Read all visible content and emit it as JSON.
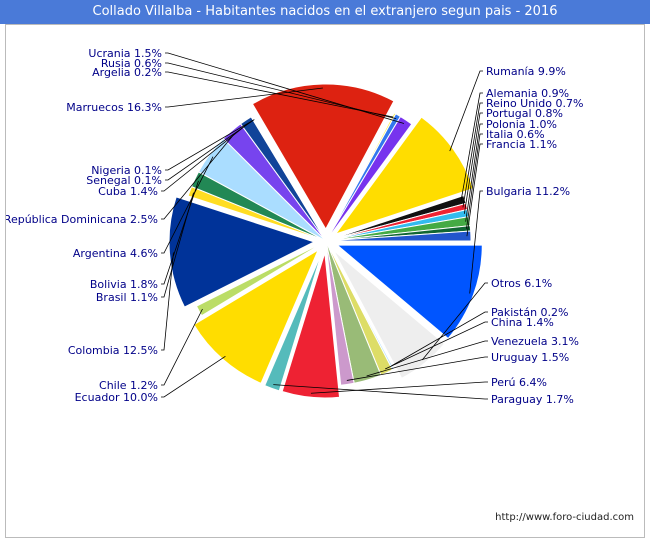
{
  "chart_data": {
    "type": "pie",
    "title": "Collado Villalba - Habitantes nacidos en el extranjero segun pais - 2016",
    "slices": [
      {
        "label": "Bulgaria 11.2%",
        "name": "Bulgaria",
        "value": 11.2,
        "color": "#0055ff",
        "exploded": true
      },
      {
        "label": "Otros 6.1%",
        "name": "Otros",
        "value": 6.1,
        "color": "#eeeeee",
        "exploded": true
      },
      {
        "label": "Pakistán 0.2%",
        "name": "Pakistán",
        "value": 0.2,
        "color": "#aaddff",
        "exploded": false
      },
      {
        "label": "China 1.4%",
        "name": "China",
        "value": 1.4,
        "color": "#dddd66",
        "exploded": false
      },
      {
        "label": "Venezuela 3.1%",
        "name": "Venezuela",
        "value": 3.1,
        "color": "#99bb77",
        "exploded": false
      },
      {
        "label": "Uruguay 1.5%",
        "name": "Uruguay",
        "value": 1.5,
        "color": "#cc99cc",
        "exploded": false
      },
      {
        "label": "Perú 6.4%",
        "name": "Perú",
        "value": 6.4,
        "color": "#ee2233",
        "exploded": true
      },
      {
        "label": "Paraguay 1.7%",
        "name": "Paraguay",
        "value": 1.7,
        "color": "#55bbbb",
        "exploded": true
      },
      {
        "label": "Ecuador 10.0%",
        "name": "Ecuador",
        "value": 10.0,
        "color": "#ffdd00",
        "exploded": true
      },
      {
        "label": "Chile 1.2%",
        "name": "Chile",
        "value": 1.2,
        "color": "#bbdd66",
        "exploded": false
      },
      {
        "label": "Colombia 12.5%",
        "name": "Colombia",
        "value": 12.5,
        "color": "#003399",
        "exploded": true
      },
      {
        "label": "Brasil 1.1%",
        "name": "Brasil",
        "value": 1.1,
        "color": "#ffdd22",
        "exploded": false
      },
      {
        "label": "Bolivia 1.8%",
        "name": "Bolivia",
        "value": 1.8,
        "color": "#228855",
        "exploded": false
      },
      {
        "label": "Argentina 4.6%",
        "name": "Argentina",
        "value": 4.6,
        "color": "#aaddff",
        "exploded": false
      },
      {
        "label": "República Dominicana 2.5%",
        "name": "República Dominicana",
        "value": 2.5,
        "color": "#7744ee",
        "exploded": false
      },
      {
        "label": "Cuba 1.4%",
        "name": "Cuba",
        "value": 1.4,
        "color": "#114499",
        "exploded": false
      },
      {
        "label": "Senegal 0.1%",
        "name": "Senegal",
        "value": 0.1,
        "color": "#44aa77",
        "exploded": false
      },
      {
        "label": "Nigeria 0.1%",
        "name": "Nigeria",
        "value": 0.1,
        "color": "#aaddff",
        "exploded": false
      },
      {
        "label": "Marruecos 16.3%",
        "name": "Marruecos",
        "value": 16.3,
        "color": "#dd2211",
        "exploded": true
      },
      {
        "label": "Argelia 0.2%",
        "name": "Argelia",
        "value": 0.2,
        "color": "#ffee33",
        "exploded": false
      },
      {
        "label": "Rusia 0.6%",
        "name": "Rusia",
        "value": 0.6,
        "color": "#3377ee",
        "exploded": false
      },
      {
        "label": "Ucrania 1.5%",
        "name": "Ucrania",
        "value": 1.5,
        "color": "#7733ee",
        "exploded": false
      },
      {
        "label": "Rumanía 9.9%",
        "name": "Rumanía",
        "value": 9.9,
        "color": "#ffdd00",
        "exploded": true
      },
      {
        "label": "Alemania 0.9%",
        "name": "Alemania",
        "value": 0.9,
        "color": "#111111",
        "exploded": false
      },
      {
        "label": "Reino Unido 0.7%",
        "name": "Reino Unido",
        "value": 0.7,
        "color": "#ee2233",
        "exploded": false
      },
      {
        "label": "Portugal 0.8%",
        "name": "Portugal",
        "value": 0.8,
        "color": "#33bbee",
        "exploded": false
      },
      {
        "label": "Polonia 1.0%",
        "name": "Polonia",
        "value": 1.0,
        "color": "#44aa44",
        "exploded": false
      },
      {
        "label": "Italia 0.6%",
        "name": "Italia",
        "value": 0.6,
        "color": "#116633",
        "exploded": false
      },
      {
        "label": "Francia 1.1%",
        "name": "Francia",
        "value": 1.1,
        "color": "#2255cc",
        "exploded": false
      }
    ],
    "label_color": "#000088",
    "leader_color": "#000000",
    "title_color": "#ffffff",
    "title_background": "#4a7ad8"
  },
  "footer": {
    "source_url": "http://www.foro-ciudad.com"
  }
}
